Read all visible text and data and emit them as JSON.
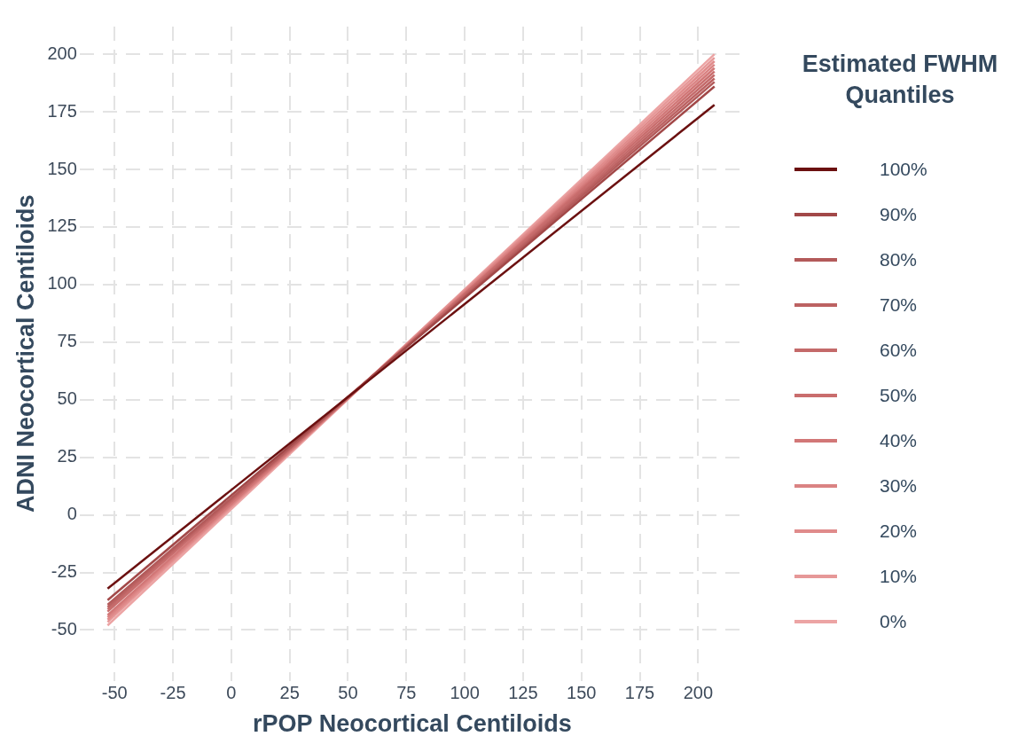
{
  "chart_data": {
    "type": "line",
    "xlabel": "rPOP Neocortical Centiloids",
    "ylabel": "ADNI Neocortical Centiloids",
    "legend_title": "Estimated FWHM Quantiles",
    "xlim": [
      -65,
      220
    ],
    "ylim": [
      -72,
      212
    ],
    "xticks": [
      -50,
      -25,
      0,
      25,
      50,
      75,
      100,
      125,
      150,
      175,
      200
    ],
    "yticks": [
      -50,
      -25,
      0,
      25,
      50,
      75,
      100,
      125,
      150,
      175,
      200
    ],
    "grid": true,
    "legend": "right",
    "marker": "none",
    "line_style": "solid",
    "x": [
      -53,
      207
    ],
    "series": [
      {
        "name": "100%",
        "color": "#6b1010",
        "values": [
          -32,
          178
        ]
      },
      {
        "name": "90%",
        "color": "#a24848",
        "values": [
          -37,
          186
        ]
      },
      {
        "name": "80%",
        "color": "#b35a5a",
        "values": [
          -39,
          188
        ]
      },
      {
        "name": "70%",
        "color": "#bc6262",
        "values": [
          -40,
          189.5
        ]
      },
      {
        "name": "60%",
        "color": "#c46a6a",
        "values": [
          -41,
          191
        ]
      },
      {
        "name": "50%",
        "color": "#c96d6d",
        "values": [
          -42,
          192.5
        ]
      },
      {
        "name": "40%",
        "color": "#d27777",
        "values": [
          -43.5,
          194
        ]
      },
      {
        "name": "30%",
        "color": "#da8383",
        "values": [
          -44.5,
          195.5
        ]
      },
      {
        "name": "20%",
        "color": "#e08b8b",
        "values": [
          -45.5,
          197
        ]
      },
      {
        "name": "10%",
        "color": "#e69898",
        "values": [
          -46.5,
          198.5
        ]
      },
      {
        "name": "0%",
        "color": "#eca4a4",
        "values": [
          -48,
          200
        ]
      }
    ]
  }
}
